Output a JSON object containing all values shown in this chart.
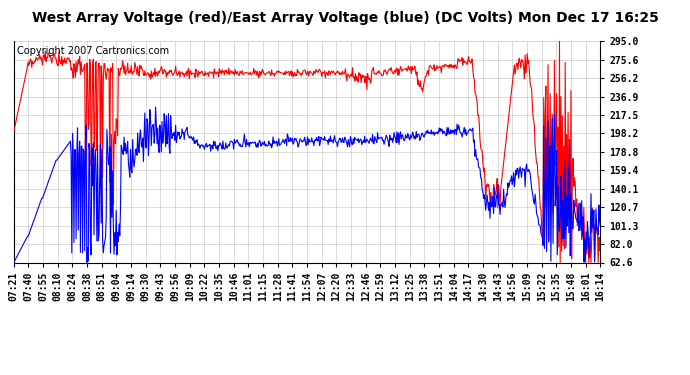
{
  "title": "West Array Voltage (red)/East Array Voltage (blue) (DC Volts) Mon Dec 17 16:25",
  "copyright": "Copyright 2007 Cartronics.com",
  "y_ticks": [
    62.6,
    82.0,
    101.3,
    120.7,
    140.1,
    159.4,
    178.8,
    198.2,
    217.5,
    236.9,
    256.2,
    275.6,
    295.0
  ],
  "y_min": 62.6,
  "y_max": 295.0,
  "x_labels": [
    "07:21",
    "07:40",
    "07:55",
    "08:10",
    "08:24",
    "08:38",
    "08:51",
    "09:04",
    "09:14",
    "09:30",
    "09:43",
    "09:56",
    "10:09",
    "10:22",
    "10:35",
    "10:46",
    "11:01",
    "11:15",
    "11:28",
    "11:41",
    "11:54",
    "12:07",
    "12:20",
    "12:33",
    "12:46",
    "12:59",
    "13:12",
    "13:25",
    "13:38",
    "13:51",
    "14:04",
    "14:17",
    "14:30",
    "14:43",
    "14:56",
    "15:09",
    "15:22",
    "15:35",
    "15:48",
    "16:01",
    "16:14"
  ],
  "red_color": "#ff0000",
  "blue_color": "#0000ff",
  "bg_color": "#ffffff",
  "grid_color": "#cccccc",
  "title_fontsize": 10,
  "copyright_fontsize": 7,
  "tick_fontsize": 7,
  "line_width": 0.8
}
